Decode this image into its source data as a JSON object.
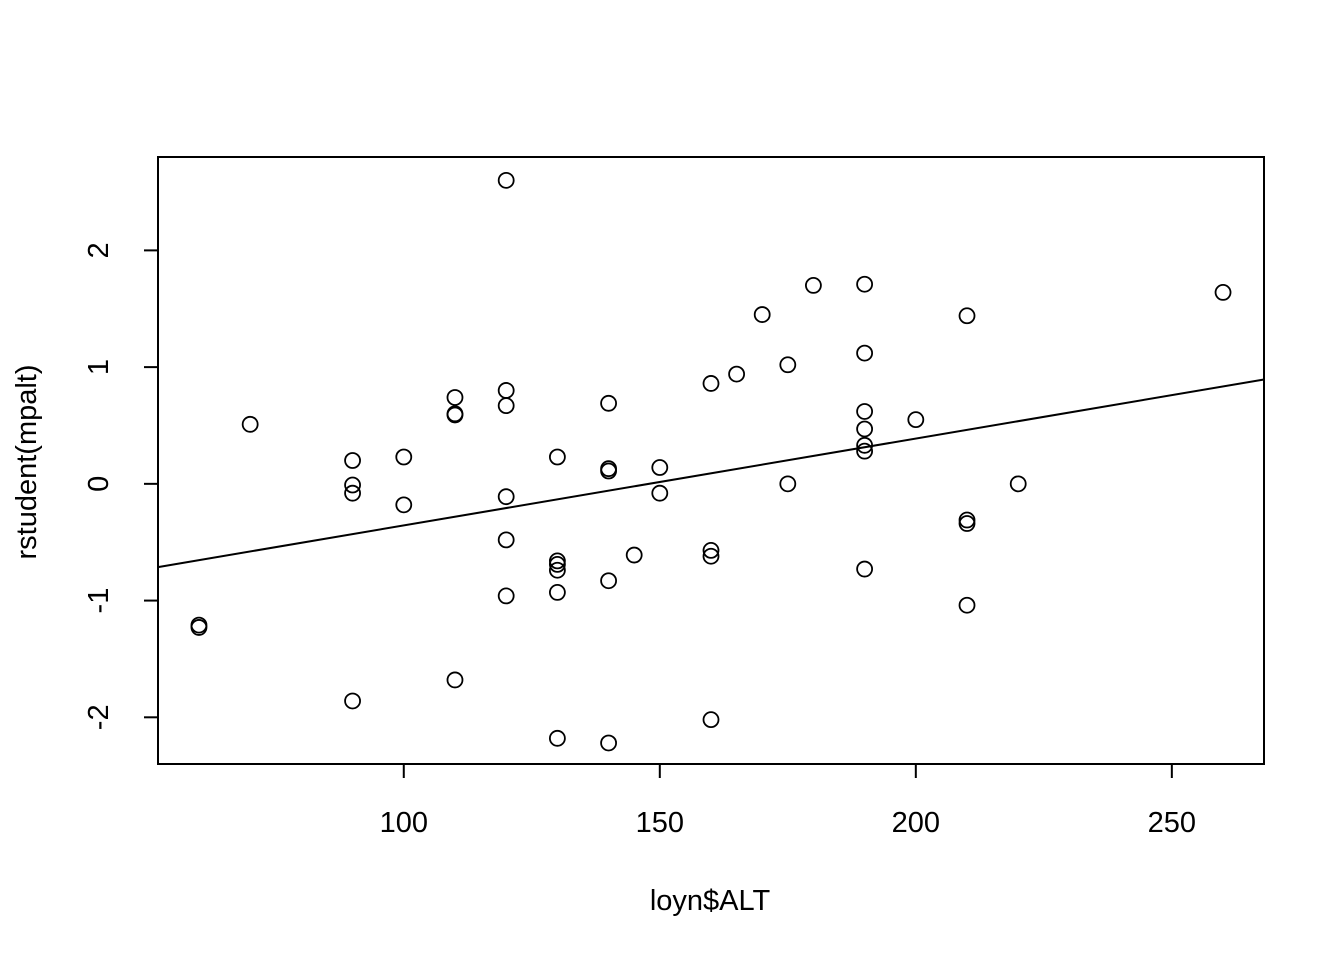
{
  "chart_data": {
    "type": "scatter",
    "title": "",
    "xlabel": "loyn$ALT",
    "ylabel": "rstudent(mpalt)",
    "xlim": [
      52,
      268
    ],
    "ylim": [
      -2.4,
      2.8
    ],
    "xticks": [
      100,
      150,
      200,
      250
    ],
    "yticks": [
      -2,
      -1,
      0,
      1,
      2
    ],
    "grid": false,
    "legend": "none",
    "regression_line": {
      "intercept": -1.1,
      "slope": 0.00744
    },
    "points": [
      {
        "x": 60,
        "y": -1.21
      },
      {
        "x": 60,
        "y": -1.23
      },
      {
        "x": 70,
        "y": 0.51
      },
      {
        "x": 90,
        "y": 0.2
      },
      {
        "x": 90,
        "y": -0.01
      },
      {
        "x": 90,
        "y": -0.08
      },
      {
        "x": 90,
        "y": -1.86
      },
      {
        "x": 100,
        "y": 0.23
      },
      {
        "x": 100,
        "y": -0.18
      },
      {
        "x": 110,
        "y": 0.74
      },
      {
        "x": 110,
        "y": 0.6
      },
      {
        "x": 110,
        "y": 0.59
      },
      {
        "x": 110,
        "y": -1.68
      },
      {
        "x": 120,
        "y": 2.6
      },
      {
        "x": 120,
        "y": 0.8
      },
      {
        "x": 120,
        "y": 0.67
      },
      {
        "x": 120,
        "y": -0.11
      },
      {
        "x": 120,
        "y": -0.48
      },
      {
        "x": 120,
        "y": -0.96
      },
      {
        "x": 130,
        "y": 0.23
      },
      {
        "x": 130,
        "y": -0.66
      },
      {
        "x": 130,
        "y": -0.69
      },
      {
        "x": 130,
        "y": -0.74
      },
      {
        "x": 130,
        "y": -0.93
      },
      {
        "x": 130,
        "y": -2.18
      },
      {
        "x": 140,
        "y": 0.69
      },
      {
        "x": 140,
        "y": 0.13
      },
      {
        "x": 140,
        "y": 0.11
      },
      {
        "x": 140,
        "y": -0.83
      },
      {
        "x": 140,
        "y": -2.22
      },
      {
        "x": 145,
        "y": -0.61
      },
      {
        "x": 150,
        "y": 0.14
      },
      {
        "x": 150,
        "y": -0.08
      },
      {
        "x": 160,
        "y": 0.86
      },
      {
        "x": 160,
        "y": -0.57
      },
      {
        "x": 160,
        "y": -0.62
      },
      {
        "x": 160,
        "y": -2.02
      },
      {
        "x": 165,
        "y": 0.94
      },
      {
        "x": 170,
        "y": 1.45
      },
      {
        "x": 175,
        "y": 1.02
      },
      {
        "x": 175,
        "y": 0.0
      },
      {
        "x": 180,
        "y": 1.7
      },
      {
        "x": 190,
        "y": 1.71
      },
      {
        "x": 190,
        "y": 1.12
      },
      {
        "x": 190,
        "y": 0.62
      },
      {
        "x": 190,
        "y": 0.47
      },
      {
        "x": 190,
        "y": 0.33
      },
      {
        "x": 190,
        "y": 0.28
      },
      {
        "x": 190,
        "y": -0.73
      },
      {
        "x": 200,
        "y": 0.55
      },
      {
        "x": 210,
        "y": 1.44
      },
      {
        "x": 210,
        "y": -0.31
      },
      {
        "x": 210,
        "y": -0.34
      },
      {
        "x": 210,
        "y": -1.04
      },
      {
        "x": 220,
        "y": 0.0
      },
      {
        "x": 260,
        "y": 1.64
      }
    ]
  }
}
